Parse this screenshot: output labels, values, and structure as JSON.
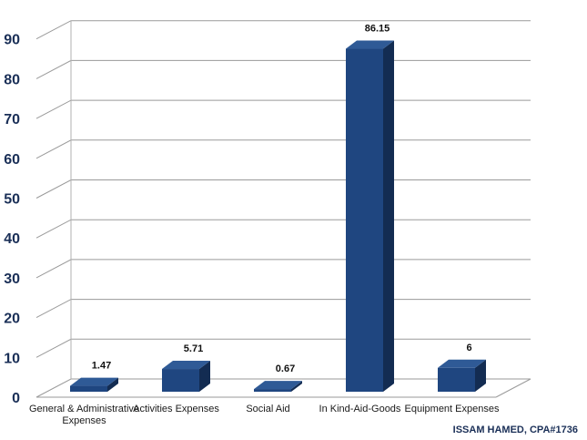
{
  "chart_data": {
    "type": "bar",
    "style": "3d-column",
    "categories": [
      "General & Administrative Expenses",
      "Activities Expenses",
      "Social Aid",
      "In Kind-Aid-Goods",
      "Equipment Expenses"
    ],
    "category_lines": [
      [
        "General & Administrative",
        "Expenses"
      ],
      [
        "Activities Expenses"
      ],
      [
        "Social Aid"
      ],
      [
        "In Kind-Aid-Goods"
      ],
      [
        "Equipment Expenses"
      ]
    ],
    "values": [
      1.47,
      5.71,
      0.67,
      86.15,
      6
    ],
    "value_labels": [
      "1.47",
      "5.71",
      "0.67",
      "86.15",
      "6"
    ],
    "yticks": [
      "0",
      "10",
      "20",
      "30",
      "40",
      "50",
      "60",
      "70",
      "80",
      "90"
    ],
    "ylim": [
      0,
      95
    ],
    "grid": true,
    "legend": "none",
    "bar_color": "#1f4680",
    "bar_side_color": "#132c52",
    "bar_top_color": "#2f5a96"
  },
  "credit": "ISSAM HAMED, CPA#1736"
}
